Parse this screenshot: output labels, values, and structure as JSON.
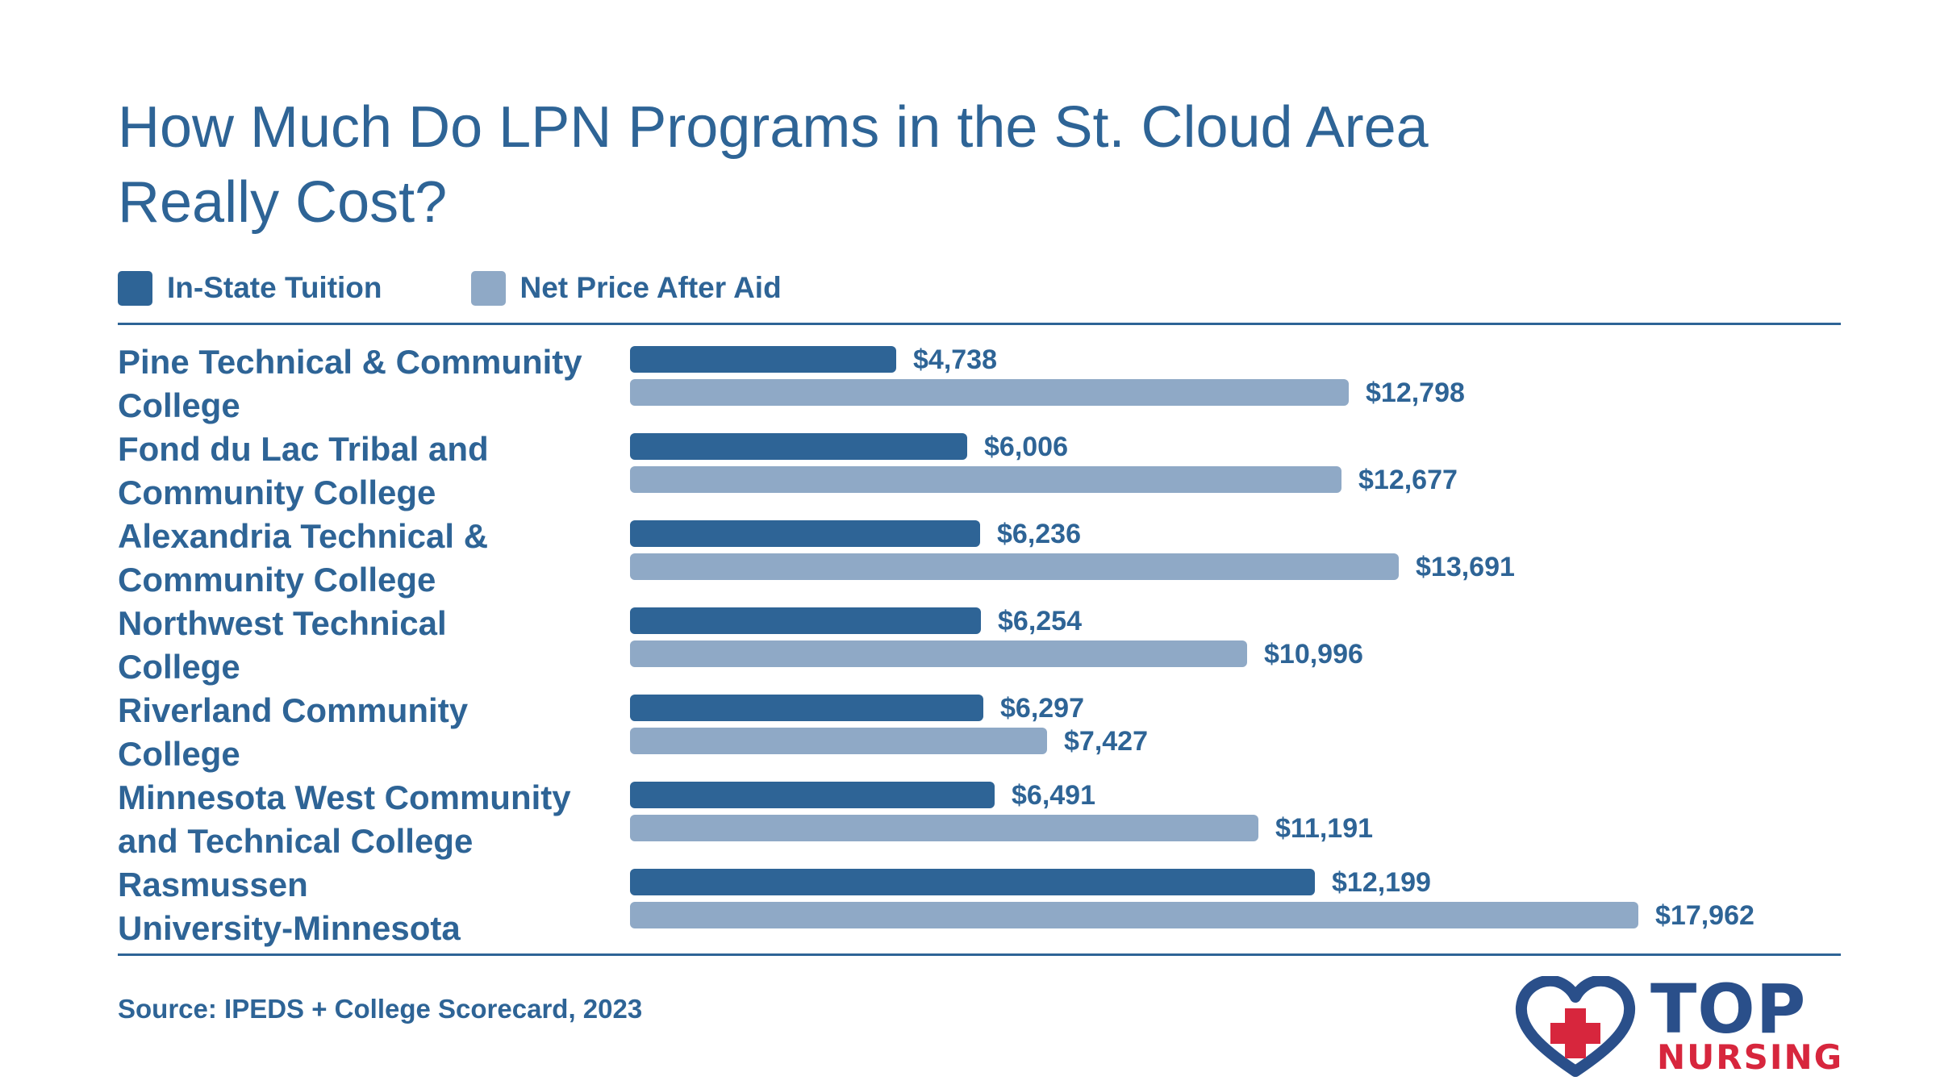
{
  "chart_data": {
    "type": "bar",
    "orientation": "horizontal",
    "title": "How Much Do LPN Programs in the St. Cloud Area Really Cost?",
    "title_lines": [
      "How Much Do LPN Programs in the St. Cloud Area",
      "Really Cost?"
    ],
    "categories": [
      "Pine Technical & Community College",
      "Fond du Lac Tribal and Community College",
      "Alexandria Technical & Community College",
      "Northwest Technical College",
      "Riverland Community College",
      "Minnesota West Community and Technical College",
      "Rasmussen University-Minnesota"
    ],
    "category_lines": [
      [
        "Pine Technical & Community",
        "College"
      ],
      [
        "Fond du Lac Tribal and",
        "Community College"
      ],
      [
        "Alexandria Technical &",
        "Community College"
      ],
      [
        "Northwest Technical",
        "College"
      ],
      [
        "Riverland Community",
        "College"
      ],
      [
        "Minnesota West Community",
        "and Technical College"
      ],
      [
        "Rasmussen",
        "University-Minnesota"
      ]
    ],
    "series": [
      {
        "name": "In-State Tuition",
        "color": "#2e6496",
        "values": [
          4738,
          6006,
          6236,
          6254,
          6297,
          6491,
          12199
        ],
        "labels": [
          "$4,738",
          "$6,006",
          "$6,236",
          "$6,254",
          "$6,297",
          "$6,491",
          "$12,199"
        ]
      },
      {
        "name": "Net Price After Aid",
        "color": "#8fa9c6",
        "values": [
          12798,
          12677,
          13691,
          10996,
          7427,
          11191,
          17962
        ],
        "labels": [
          "$12,798",
          "$12,677",
          "$13,691",
          "$10,996",
          "$7,427",
          "$11,191",
          "$17,962"
        ]
      }
    ],
    "legend_position": "top-left",
    "grid": false
  },
  "legend": {
    "items": [
      {
        "label": "In-State Tuition",
        "color": "#2e6496"
      },
      {
        "label": "Net Price After Aid",
        "color": "#8fa9c6"
      }
    ]
  },
  "footer": {
    "source": "Source: IPEDS + College Scorecard, 2023"
  },
  "logo": {
    "word_top": "TOP",
    "word_bottom": "NURSING",
    "heart_color": "#2a4f8a",
    "cross_color": "#d7263d"
  }
}
